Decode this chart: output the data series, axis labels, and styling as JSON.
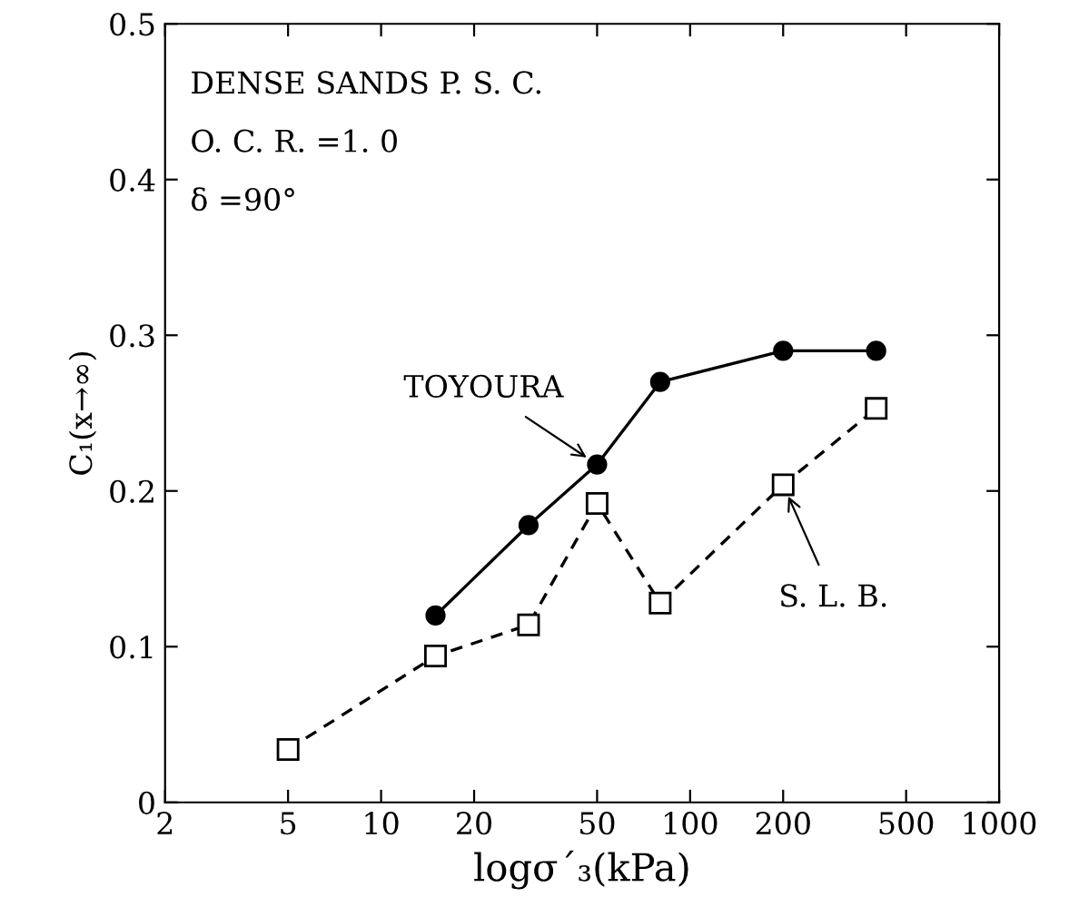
{
  "chart_data": {
    "type": "line",
    "xlabel": "logσ´₃(kPa)",
    "ylabel": "C₁(x→∞)",
    "log": "x",
    "xlim": [
      2,
      1000
    ],
    "xticks": [
      2,
      5,
      10,
      20,
      50,
      100,
      200,
      500,
      1000
    ],
    "ylim": [
      0,
      0.5
    ],
    "yticks": [
      {
        "value": 0,
        "label": "0"
      },
      {
        "value": 0.1,
        "label": "0.1"
      },
      {
        "value": 0.2,
        "label": "0.2"
      },
      {
        "value": 0.3,
        "label": "0.3"
      },
      {
        "value": 0.4,
        "label": "0.4"
      },
      {
        "value": 0.5,
        "label": "0.5"
      }
    ],
    "grid": false,
    "legend": false,
    "series": [
      {
        "color": "#000000",
        "marker": "circle",
        "line_style": "solid",
        "x": [
          15,
          30,
          50,
          80,
          200,
          400
        ],
        "values": [
          0.12,
          0.178,
          0.217,
          0.27,
          0.29,
          0.29
        ]
      },
      {
        "color": "#000000",
        "marker": "square",
        "line_style": "dashed",
        "x": [
          5,
          15,
          30,
          50,
          80,
          200,
          400
        ],
        "values": [
          0.034,
          0.094,
          0.114,
          0.192,
          0.128,
          0.204,
          0.253
        ]
      }
    ],
    "annotations": [
      "DENSE SANDS P. S. C.",
      "O. C. R. =1. 0",
      "δ =90°",
      {
        "text": "TOYOURA",
        "x": 50,
        "y": 0.217
      },
      {
        "text": "S. L. B.",
        "x": 200,
        "y": 0.204
      }
    ]
  }
}
